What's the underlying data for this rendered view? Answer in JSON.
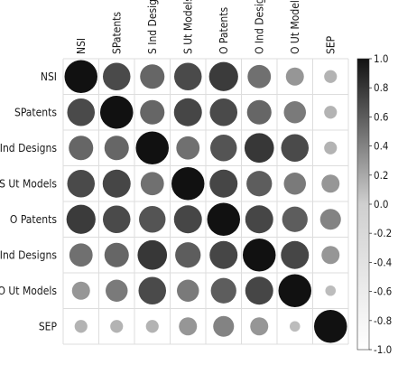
{
  "chart_data": {
    "type": "heatmap",
    "title": "",
    "variables": [
      "NSI",
      "SPatents",
      "S Ind Designs",
      "S Ut Models",
      "O Patents",
      "O Ind Designs",
      "O Ut Models",
      "SEP"
    ],
    "matrix": [
      [
        1.0,
        0.7,
        0.55,
        0.7,
        0.78,
        0.5,
        0.3,
        0.15
      ],
      [
        0.7,
        1.0,
        0.55,
        0.72,
        0.7,
        0.55,
        0.45,
        0.15
      ],
      [
        0.55,
        0.55,
        1.0,
        0.5,
        0.65,
        0.8,
        0.7,
        0.15
      ],
      [
        0.7,
        0.72,
        0.5,
        1.0,
        0.72,
        0.6,
        0.45,
        0.3
      ],
      [
        0.78,
        0.7,
        0.65,
        0.72,
        1.0,
        0.72,
        0.6,
        0.4
      ],
      [
        0.5,
        0.55,
        0.8,
        0.6,
        0.72,
        1.0,
        0.72,
        0.3
      ],
      [
        0.3,
        0.45,
        0.7,
        0.45,
        0.6,
        0.72,
        1.0,
        0.1
      ],
      [
        0.15,
        0.15,
        0.15,
        0.3,
        0.4,
        0.3,
        0.1,
        1.0
      ]
    ],
    "colorbar": {
      "ticks": [
        "1.0",
        "0.8",
        "0.6",
        "0.4",
        "0.2",
        "0.0",
        "-0.2",
        "-0.4",
        "-0.6",
        "-0.8",
        "-1.0"
      ],
      "range": [
        -1,
        1
      ],
      "colors": {
        "negative": "#ffffff",
        "zero": "#cfcfcf",
        "positive": "#111111"
      }
    },
    "grid": true
  }
}
